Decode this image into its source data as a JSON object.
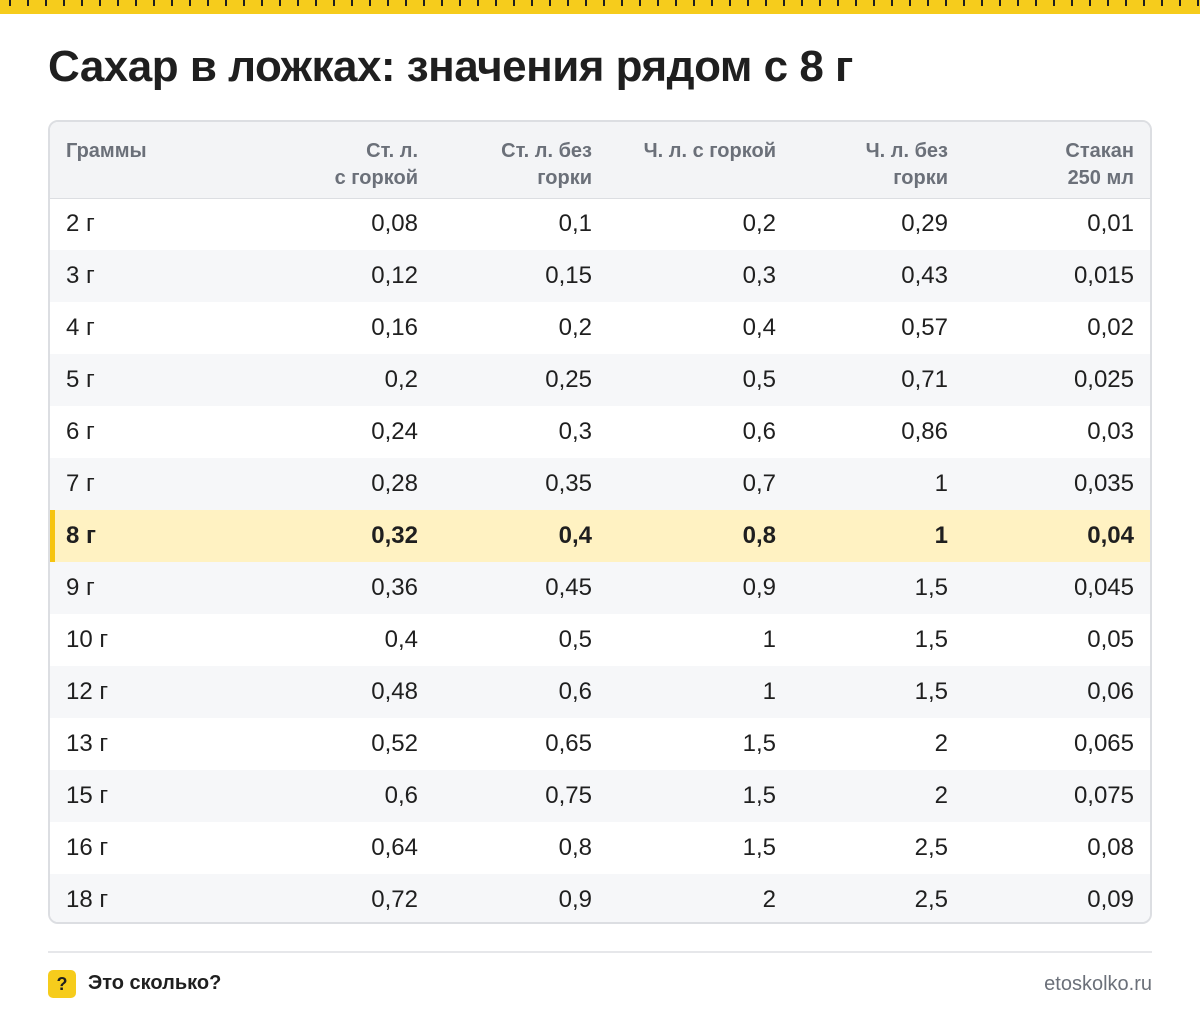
{
  "title": "Сахар в ложках: значения рядом с 8 г",
  "colors": {
    "accent": "#f6cc1c",
    "highlight_row": "#fff2c2"
  },
  "table": {
    "headers": [
      [
        "Граммы"
      ],
      [
        "Ст. л.",
        "с горкой"
      ],
      [
        "Ст. л. без",
        "горки"
      ],
      [
        "Ч. л. с горкой"
      ],
      [
        "Ч. л. без",
        "горки"
      ],
      [
        "Стакан",
        "250 мл"
      ]
    ],
    "highlight_row": 6,
    "rows": [
      [
        "2 г",
        "0,08",
        "0,1",
        "0,2",
        "0,29",
        "0,01"
      ],
      [
        "3 г",
        "0,12",
        "0,15",
        "0,3",
        "0,43",
        "0,015"
      ],
      [
        "4 г",
        "0,16",
        "0,2",
        "0,4",
        "0,57",
        "0,02"
      ],
      [
        "5 г",
        "0,2",
        "0,25",
        "0,5",
        "0,71",
        "0,025"
      ],
      [
        "6 г",
        "0,24",
        "0,3",
        "0,6",
        "0,86",
        "0,03"
      ],
      [
        "7 г",
        "0,28",
        "0,35",
        "0,7",
        "1",
        "0,035"
      ],
      [
        "8 г",
        "0,32",
        "0,4",
        "0,8",
        "1",
        "0,04"
      ],
      [
        "9 г",
        "0,36",
        "0,45",
        "0,9",
        "1,5",
        "0,045"
      ],
      [
        "10 г",
        "0,4",
        "0,5",
        "1",
        "1,5",
        "0,05"
      ],
      [
        "12 г",
        "0,48",
        "0,6",
        "1",
        "1,5",
        "0,06"
      ],
      [
        "13 г",
        "0,52",
        "0,65",
        "1,5",
        "2",
        "0,065"
      ],
      [
        "15 г",
        "0,6",
        "0,75",
        "1,5",
        "2",
        "0,075"
      ],
      [
        "16 г",
        "0,64",
        "0,8",
        "1,5",
        "2,5",
        "0,08"
      ],
      [
        "18 г",
        "0,72",
        "0,9",
        "2",
        "2,5",
        "0,09"
      ]
    ]
  },
  "footer": {
    "badge": "?",
    "brand": "Это сколько?",
    "site": "etoskolko.ru"
  }
}
